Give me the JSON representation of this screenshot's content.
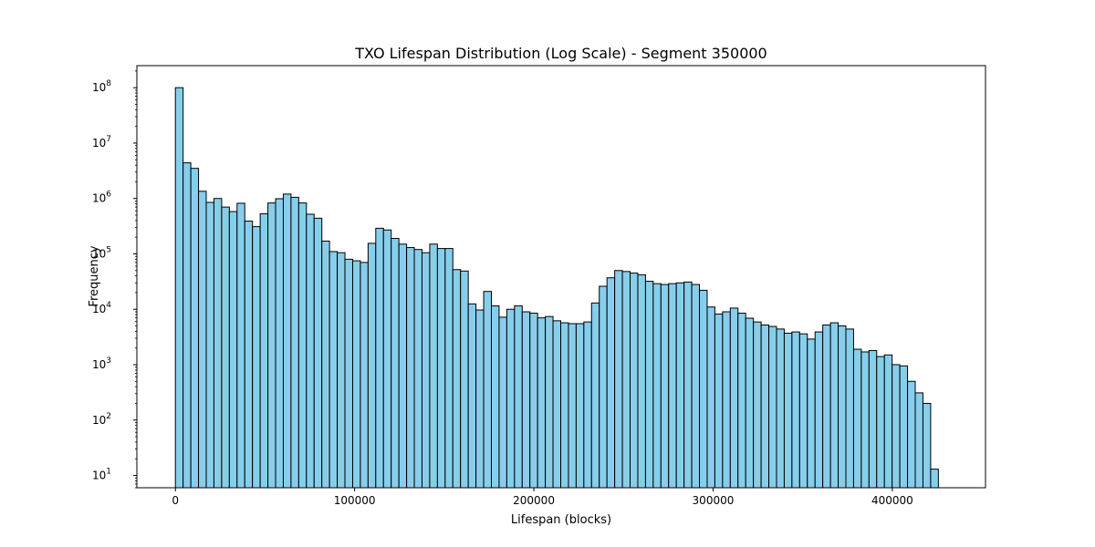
{
  "chart_data": {
    "type": "bar",
    "title": "TXO Lifespan Distribution (Log Scale) - Segment 350000",
    "xlabel": "Lifespan (blocks)",
    "ylabel": "Frequency",
    "yscale": "log",
    "xlim": [
      -21500,
      452000
    ],
    "ylim": [
      6,
      250000000
    ],
    "grid": false,
    "bar_color": "#87ceeb",
    "edge_color": "#000000",
    "bin_start": 0,
    "bin_width": 4300,
    "x_ticks": [
      {
        "value": 0,
        "label": "0"
      },
      {
        "value": 100000,
        "label": "100000"
      },
      {
        "value": 200000,
        "label": "200000"
      },
      {
        "value": 300000,
        "label": "300000"
      },
      {
        "value": 400000,
        "label": "400000"
      }
    ],
    "y_ticks": [
      {
        "value": 10,
        "base": "10",
        "exp": "1"
      },
      {
        "value": 100,
        "base": "10",
        "exp": "2"
      },
      {
        "value": 1000,
        "base": "10",
        "exp": "3"
      },
      {
        "value": 10000,
        "base": "10",
        "exp": "4"
      },
      {
        "value": 100000,
        "base": "10",
        "exp": "5"
      },
      {
        "value": 1000000,
        "base": "10",
        "exp": "6"
      },
      {
        "value": 10000000,
        "base": "10",
        "exp": "7"
      },
      {
        "value": 100000000,
        "base": "10",
        "exp": "8"
      }
    ],
    "values": [
      100000000,
      4400000,
      3500000,
      1350000,
      850000,
      1000000,
      700000,
      580000,
      820000,
      390000,
      310000,
      530000,
      830000,
      990000,
      1200000,
      1050000,
      830000,
      520000,
      440000,
      170000,
      110000,
      105000,
      80000,
      75000,
      70000,
      155000,
      290000,
      270000,
      190000,
      150000,
      130000,
      120000,
      105000,
      150000,
      125000,
      125000,
      52000,
      49000,
      12500,
      9700,
      21000,
      11500,
      7200,
      10000,
      11500,
      9000,
      8500,
      7000,
      7400,
      6200,
      5700,
      5500,
      5500,
      5900,
      13000,
      26000,
      37000,
      50000,
      48000,
      45000,
      42000,
      32000,
      29000,
      28000,
      29000,
      30000,
      31000,
      28000,
      22000,
      11000,
      8200,
      9000,
      10500,
      8500,
      6900,
      5900,
      5200,
      4900,
      4400,
      3700,
      3900,
      3600,
      2900,
      3900,
      5200,
      5700,
      5000,
      4400,
      1900,
      1700,
      1800,
      1400,
      1500,
      1000,
      950,
      500,
      310,
      200,
      13
    ]
  }
}
